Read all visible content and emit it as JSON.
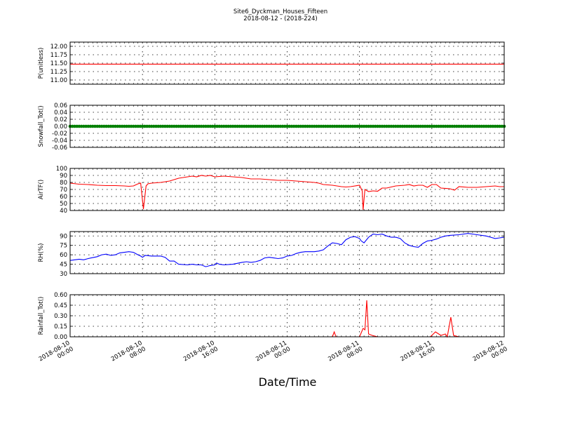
{
  "chart_data": {
    "title": "Site6_Dyckman_Houses_Fifteen",
    "subtitle": "2018-08-12 - (2018-224)",
    "xlabel": "Date/Time",
    "x_range": [
      "2018-08-10 00:00",
      "2018-08-12 00:00"
    ],
    "x_ticks": [
      {
        "t": 0,
        "line1": "2018-08-10",
        "line2": "00:00"
      },
      {
        "t": 8,
        "line1": "2018-08-10",
        "line2": "08:00"
      },
      {
        "t": 16,
        "line1": "2018-08-10",
        "line2": "16:00"
      },
      {
        "t": 24,
        "line1": "2018-08-11",
        "line2": "00:00"
      },
      {
        "t": 32,
        "line1": "2018-08-11",
        "line2": "08:00"
      },
      {
        "t": 40,
        "line1": "2018-08-11",
        "line2": "16:00"
      },
      {
        "t": 48,
        "line1": "2018-08-12",
        "line2": "00:00"
      }
    ],
    "panels": [
      {
        "type": "line",
        "ylabel": "P(unitless)",
        "color": "#ff0000",
        "ylim": [
          10.875,
          12.125
        ],
        "yticks": [
          "11.00",
          "11.25",
          "11.50",
          "11.75",
          "12.00"
        ],
        "ytick_values": [
          11.0,
          11.25,
          11.5,
          11.75,
          12.0
        ],
        "points": [
          [
            0,
            11.47
          ],
          [
            48,
            11.47
          ]
        ]
      },
      {
        "type": "scatter-line",
        "ylabel": "Snowfall_Tot()",
        "color": "#008000",
        "ylim": [
          -0.06,
          0.06
        ],
        "yticks": [
          "-0.06",
          "-0.04",
          "-0.02",
          "0.00",
          "0.02",
          "0.04",
          "0.06"
        ],
        "ytick_values": [
          -0.06,
          -0.04,
          -0.02,
          0.0,
          0.02,
          0.04,
          0.06
        ],
        "points": [
          [
            0,
            0
          ],
          [
            48,
            0
          ]
        ]
      },
      {
        "type": "line",
        "ylabel": "AirTF()",
        "color": "#ff0000",
        "ylim": [
          40,
          100
        ],
        "yticks": [
          "40",
          "50",
          "60",
          "70",
          "80",
          "90",
          "100"
        ],
        "ytick_values": [
          40,
          50,
          60,
          70,
          80,
          90,
          100
        ],
        "points": [
          [
            0,
            79
          ],
          [
            1,
            77.5
          ],
          [
            2,
            77
          ],
          [
            3,
            76
          ],
          [
            4,
            75.5
          ],
          [
            5,
            75.5
          ],
          [
            6,
            75
          ],
          [
            6.5,
            74.5
          ],
          [
            7,
            75
          ],
          [
            7.5,
            78
          ],
          [
            7.8,
            79
          ],
          [
            8.1,
            42
          ],
          [
            8.4,
            75
          ],
          [
            8.6,
            78
          ],
          [
            9,
            79
          ],
          [
            10,
            80
          ],
          [
            11,
            82
          ],
          [
            11.5,
            84
          ],
          [
            12,
            86
          ],
          [
            13,
            88
          ],
          [
            13.5,
            89
          ],
          [
            14,
            88
          ],
          [
            14.5,
            90
          ],
          [
            15,
            89
          ],
          [
            15.5,
            90
          ],
          [
            16,
            88
          ],
          [
            17,
            89
          ],
          [
            18,
            88
          ],
          [
            19,
            87
          ],
          [
            20,
            85
          ],
          [
            21,
            85
          ],
          [
            22,
            84
          ],
          [
            23,
            83
          ],
          [
            24,
            83
          ],
          [
            25,
            82
          ],
          [
            26,
            81
          ],
          [
            27,
            80
          ],
          [
            27.5,
            79
          ],
          [
            28,
            77
          ],
          [
            29,
            76
          ],
          [
            30,
            74
          ],
          [
            30.5,
            73.5
          ],
          [
            31,
            74
          ],
          [
            32,
            76
          ],
          [
            32.3,
            68
          ],
          [
            32.4,
            41
          ],
          [
            32.6,
            70
          ],
          [
            33,
            67
          ],
          [
            33.5,
            68
          ],
          [
            34,
            67.5
          ],
          [
            34.5,
            72
          ],
          [
            35,
            72
          ],
          [
            36,
            75
          ],
          [
            37,
            76
          ],
          [
            37.5,
            77
          ],
          [
            38,
            75
          ],
          [
            38.5,
            76
          ],
          [
            39,
            76
          ],
          [
            39.5,
            73
          ],
          [
            40,
            77
          ],
          [
            40.5,
            77
          ],
          [
            41,
            72
          ],
          [
            42,
            71
          ],
          [
            42.5,
            69
          ],
          [
            43,
            74
          ],
          [
            44,
            73
          ],
          [
            45,
            73
          ],
          [
            46,
            74
          ],
          [
            47,
            75
          ],
          [
            47.5,
            74
          ],
          [
            48,
            74
          ]
        ]
      },
      {
        "type": "line",
        "ylabel": "RH(%)",
        "color": "#0000ff",
        "ylim": [
          30,
          97
        ],
        "yticks": [
          "30",
          "45",
          "60",
          "75",
          "90"
        ],
        "ytick_values": [
          30,
          45,
          60,
          75,
          90
        ],
        "points": [
          [
            0,
            51
          ],
          [
            1,
            53
          ],
          [
            1.5,
            52
          ],
          [
            2,
            54
          ],
          [
            3,
            57
          ],
          [
            3.5,
            60
          ],
          [
            4,
            61
          ],
          [
            4.5,
            59
          ],
          [
            5,
            60
          ],
          [
            5.5,
            63
          ],
          [
            6,
            64
          ],
          [
            6.5,
            65
          ],
          [
            7,
            64
          ],
          [
            7.5,
            60
          ],
          [
            7.8,
            58
          ],
          [
            8,
            56
          ],
          [
            8.3,
            59
          ],
          [
            9,
            58
          ],
          [
            9.5,
            58
          ],
          [
            10,
            58
          ],
          [
            10.5,
            56
          ],
          [
            11,
            50
          ],
          [
            11.5,
            50
          ],
          [
            12,
            45
          ],
          [
            13,
            44
          ],
          [
            13.5,
            45
          ],
          [
            14,
            44
          ],
          [
            14.5,
            44
          ],
          [
            15,
            41
          ],
          [
            15.5,
            43
          ],
          [
            16,
            44
          ],
          [
            16.2,
            47
          ],
          [
            16.5,
            45
          ],
          [
            17,
            44
          ],
          [
            18,
            45
          ],
          [
            19,
            48
          ],
          [
            19.5,
            49
          ],
          [
            20,
            48
          ],
          [
            20.5,
            49
          ],
          [
            21,
            51
          ],
          [
            21.5,
            55
          ],
          [
            22,
            56
          ],
          [
            22.5,
            55
          ],
          [
            23,
            54
          ],
          [
            23.5,
            55
          ],
          [
            24,
            58
          ],
          [
            24.5,
            59
          ],
          [
            25,
            62
          ],
          [
            25.5,
            64
          ],
          [
            26,
            65
          ],
          [
            26.5,
            65
          ],
          [
            27,
            65
          ],
          [
            27.5,
            66
          ],
          [
            28,
            68
          ],
          [
            28.5,
            74
          ],
          [
            29,
            79
          ],
          [
            29.5,
            78
          ],
          [
            30,
            76
          ],
          [
            30.5,
            84
          ],
          [
            31,
            88
          ],
          [
            31.5,
            89
          ],
          [
            32,
            86
          ],
          [
            32.2,
            82
          ],
          [
            32.5,
            79
          ],
          [
            33,
            88
          ],
          [
            33.5,
            93
          ],
          [
            34,
            92
          ],
          [
            34.5,
            93
          ],
          [
            35,
            90
          ],
          [
            35.5,
            88
          ],
          [
            36,
            88
          ],
          [
            36.5,
            86
          ],
          [
            37,
            79
          ],
          [
            37.5,
            75
          ],
          [
            38,
            73
          ],
          [
            38.5,
            72
          ],
          [
            39,
            78
          ],
          [
            39.5,
            82
          ],
          [
            40,
            83
          ],
          [
            40.5,
            85
          ],
          [
            41,
            88
          ],
          [
            41.5,
            90
          ],
          [
            42,
            91
          ],
          [
            43,
            92
          ],
          [
            44,
            94
          ],
          [
            45,
            92
          ],
          [
            46,
            90
          ],
          [
            46.5,
            88
          ],
          [
            47,
            86
          ],
          [
            47.5,
            87
          ],
          [
            48,
            88
          ]
        ]
      },
      {
        "type": "line",
        "ylabel": "Rainfall_Tot()",
        "color": "#ff0000",
        "ylim": [
          0,
          0.6
        ],
        "yticks": [
          "0.00",
          "0.15",
          "0.30",
          "0.45",
          "0.60"
        ],
        "ytick_values": [
          0.0,
          0.15,
          0.3,
          0.45,
          0.6
        ],
        "points": [
          [
            0,
            0
          ],
          [
            29,
            0
          ],
          [
            29.2,
            0.07
          ],
          [
            29.4,
            0
          ],
          [
            32,
            0
          ],
          [
            32.4,
            0.12
          ],
          [
            32.6,
            0.1
          ],
          [
            32.8,
            0.52
          ],
          [
            33,
            0.04
          ],
          [
            33.4,
            0.02
          ],
          [
            34,
            0
          ],
          [
            39.8,
            0
          ],
          [
            40,
            0.02
          ],
          [
            40.4,
            0.07
          ],
          [
            41,
            0.02
          ],
          [
            41.5,
            0.04
          ],
          [
            41.7,
            0
          ],
          [
            42.1,
            0.28
          ],
          [
            42.4,
            0.02
          ],
          [
            43,
            0
          ],
          [
            48,
            0
          ]
        ]
      }
    ]
  }
}
